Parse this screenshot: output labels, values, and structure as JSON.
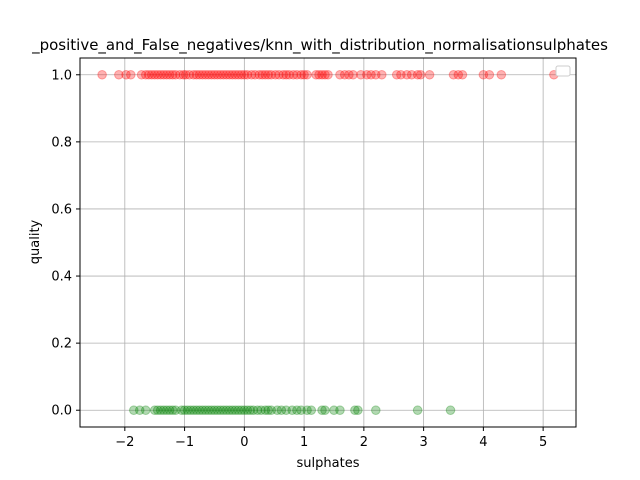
{
  "chart_data": {
    "type": "scatter",
    "title": "_positive_and_False_negatives/knn_with_distribution_normalisationsulphates",
    "xlabel": "sulphates",
    "ylabel": "quality",
    "xlim": [
      -2.75,
      5.55
    ],
    "ylim": [
      -0.05,
      1.05
    ],
    "xticks": [
      -2,
      -1,
      0,
      1,
      2,
      3,
      4,
      5
    ],
    "yticks": [
      0.0,
      0.2,
      0.4,
      0.6,
      0.8,
      1.0
    ],
    "xtick_labels": [
      "−2",
      "−1",
      "0",
      "1",
      "2",
      "3",
      "4",
      "5"
    ],
    "ytick_labels": [
      "0.0",
      "0.2",
      "0.4",
      "0.6",
      "0.8",
      "1.0"
    ],
    "grid": true,
    "legend": "top-right",
    "series": [
      {
        "color": "#ff0000",
        "alpha": 0.3,
        "x": [
          -2.38,
          -2.1,
          -1.98,
          -1.9,
          -1.72,
          -1.65,
          -1.6,
          -1.55,
          -1.5,
          -1.45,
          -1.4,
          -1.35,
          -1.3,
          -1.25,
          -1.2,
          -1.15,
          -1.08,
          -1.02,
          -0.98,
          -0.92,
          -0.85,
          -0.8,
          -0.75,
          -0.7,
          -0.65,
          -0.6,
          -0.55,
          -0.5,
          -0.45,
          -0.4,
          -0.35,
          -0.3,
          -0.25,
          -0.2,
          -0.15,
          -0.1,
          -0.05,
          0.0,
          0.05,
          0.12,
          0.18,
          0.25,
          0.3,
          0.35,
          0.4,
          0.45,
          0.52,
          0.58,
          0.65,
          0.7,
          0.75,
          0.82,
          0.88,
          0.95,
          1.0,
          1.05,
          1.2,
          1.25,
          1.3,
          1.35,
          1.4,
          1.6,
          1.68,
          1.75,
          1.82,
          1.95,
          2.05,
          2.12,
          2.2,
          2.3,
          2.55,
          2.62,
          2.72,
          2.8,
          2.9,
          2.95,
          3.1,
          3.5,
          3.58,
          3.65,
          4.0,
          4.1,
          4.3,
          5.18
        ],
        "y": [
          1,
          1,
          1,
          1,
          1,
          1,
          1,
          1,
          1,
          1,
          1,
          1,
          1,
          1,
          1,
          1,
          1,
          1,
          1,
          1,
          1,
          1,
          1,
          1,
          1,
          1,
          1,
          1,
          1,
          1,
          1,
          1,
          1,
          1,
          1,
          1,
          1,
          1,
          1,
          1,
          1,
          1,
          1,
          1,
          1,
          1,
          1,
          1,
          1,
          1,
          1,
          1,
          1,
          1,
          1,
          1,
          1,
          1,
          1,
          1,
          1,
          1,
          1,
          1,
          1,
          1,
          1,
          1,
          1,
          1,
          1,
          1,
          1,
          1,
          1,
          1,
          1,
          1,
          1,
          1,
          1,
          1,
          1,
          1
        ]
      },
      {
        "color": "#008000",
        "alpha": 0.3,
        "x": [
          -1.85,
          -1.75,
          -1.65,
          -1.5,
          -1.45,
          -1.4,
          -1.35,
          -1.3,
          -1.25,
          -1.2,
          -1.15,
          -1.05,
          -1.0,
          -0.95,
          -0.9,
          -0.85,
          -0.8,
          -0.75,
          -0.7,
          -0.65,
          -0.6,
          -0.55,
          -0.5,
          -0.45,
          -0.4,
          -0.35,
          -0.3,
          -0.25,
          -0.2,
          -0.15,
          -0.1,
          -0.05,
          0.0,
          0.05,
          0.1,
          0.15,
          0.22,
          0.28,
          0.35,
          0.4,
          0.45,
          0.55,
          0.62,
          0.7,
          0.8,
          0.88,
          0.95,
          1.05,
          1.12,
          1.3,
          1.35,
          1.5,
          1.6,
          1.85,
          1.9,
          2.2,
          2.9,
          3.45
        ],
        "y": [
          0,
          0,
          0,
          0,
          0,
          0,
          0,
          0,
          0,
          0,
          0,
          0,
          0,
          0,
          0,
          0,
          0,
          0,
          0,
          0,
          0,
          0,
          0,
          0,
          0,
          0,
          0,
          0,
          0,
          0,
          0,
          0,
          0,
          0,
          0,
          0,
          0,
          0,
          0,
          0,
          0,
          0,
          0,
          0,
          0,
          0,
          0,
          0,
          0,
          0,
          0,
          0,
          0,
          0,
          0,
          0,
          0,
          0
        ]
      }
    ]
  }
}
